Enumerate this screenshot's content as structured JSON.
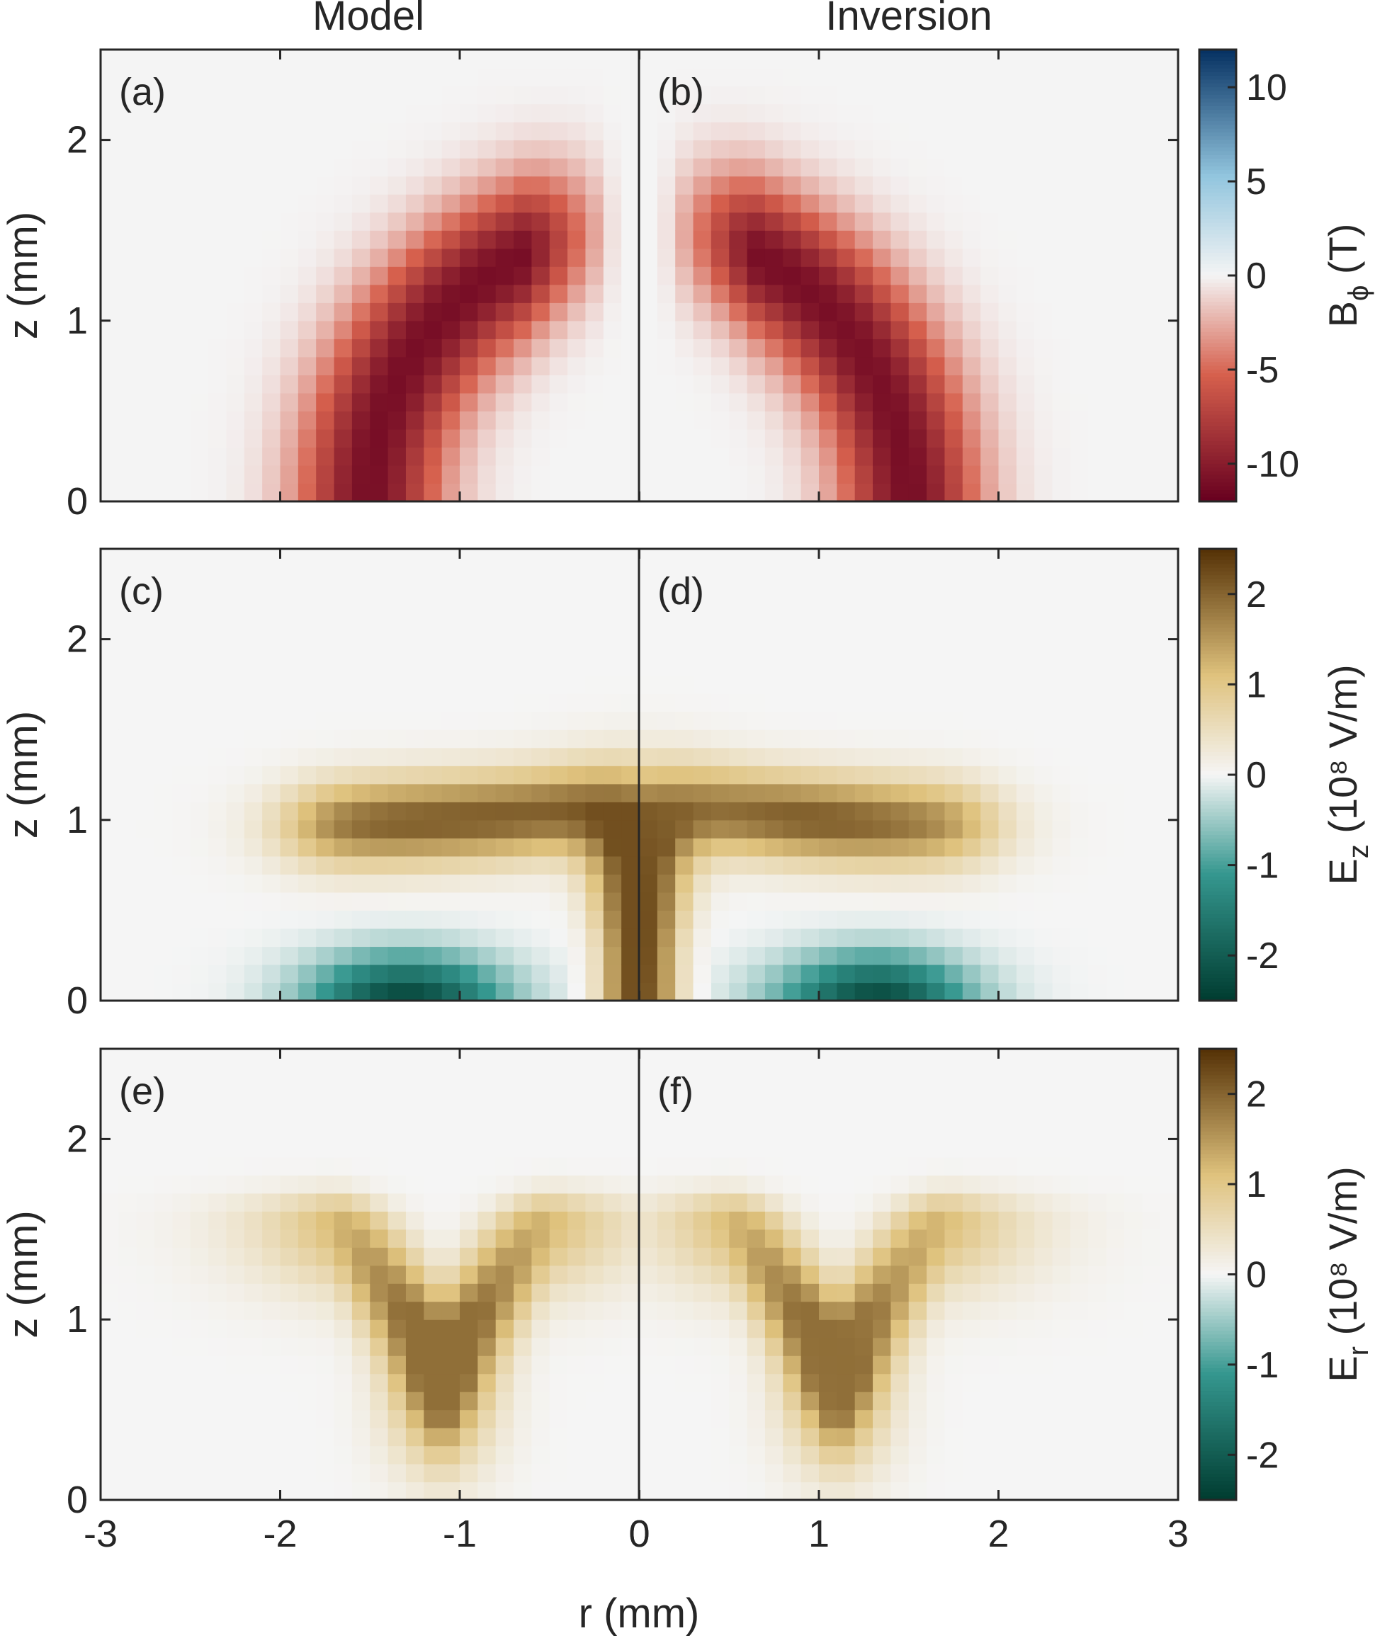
{
  "figure": {
    "col_titles": [
      "Model",
      "Inversion"
    ],
    "xlabel": "r (mm)",
    "ylabel": "z (mm)",
    "x_ticks": [
      "-3",
      "-2",
      "-1",
      "0",
      "0",
      "1",
      "2",
      "3"
    ],
    "y_ticks": [
      "0",
      "1",
      "2"
    ]
  },
  "chart_data": [
    {
      "type": "heatmap",
      "field": "B_phi",
      "panels": [
        {
          "label": "(a)",
          "title": "Model",
          "xlim": [
            -3,
            0
          ]
        },
        {
          "label": "(b)",
          "title": "Inversion",
          "xlim": [
            0,
            3
          ]
        }
      ],
      "shape": "arc",
      "arc": {
        "center_r": 0,
        "center_z": 0,
        "radius": 1.5,
        "width": 0.28
      },
      "ylim": [
        0,
        2.5
      ],
      "colorbar": {
        "label": "B",
        "label_sub": "ϕ",
        "label_rest": " (T)",
        "range": [
          -12,
          12
        ],
        "ticks": [
          10,
          5,
          0,
          -5,
          -10
        ],
        "tick_labels": [
          "10",
          "5",
          "0",
          "-5",
          "-10"
        ],
        "colormap": "red-white-blue",
        "colors": {
          "neg": "#67001f",
          "negmid": "#d6604d",
          "zero": "#f4f4f4",
          "posmid": "#92c5de",
          "pos": "#053061"
        }
      },
      "peak_value": -11
    },
    {
      "type": "heatmap",
      "field": "E_z",
      "panels": [
        {
          "label": "(c)",
          "title": "Model",
          "xlim": [
            -3,
            0
          ]
        },
        {
          "label": "(d)",
          "title": "Inversion",
          "xlim": [
            0,
            3
          ]
        }
      ],
      "shape": "wing",
      "ylim": [
        0,
        2.5
      ],
      "colorbar": {
        "label": "E",
        "label_sub": "z",
        "label_rest": " (10⁸ V/m)",
        "range": [
          -2.5,
          2.5
        ],
        "ticks": [
          2,
          1,
          0,
          -1,
          -2
        ],
        "tick_labels": [
          "2",
          "1",
          "0",
          "-1",
          "-2"
        ],
        "colormap": "brown-white-teal",
        "colors": {
          "neg": "#003c30",
          "negmid": "#35978f",
          "zero": "#f5f5f5",
          "posmid": "#dfc27d",
          "pos": "#543005"
        }
      },
      "peak_value": 2.2,
      "trough_value": -2.3
    },
    {
      "type": "heatmap",
      "field": "E_r",
      "panels": [
        {
          "label": "(e)",
          "title": "Model",
          "xlim": [
            -3,
            0
          ]
        },
        {
          "label": "(f)",
          "title": "Inversion",
          "xlim": [
            0,
            3
          ]
        }
      ],
      "shape": "v",
      "ylim": [
        0,
        2.5
      ],
      "colorbar": {
        "label": "E",
        "label_sub": "r",
        "label_rest": " (10⁸ V/m)",
        "range": [
          -2.5,
          2.5
        ],
        "ticks": [
          2,
          1,
          0,
          -1,
          -2
        ],
        "tick_labels": [
          "2",
          "1",
          "0",
          "-1",
          "-2"
        ],
        "colormap": "brown-white-teal",
        "colors": {
          "neg": "#003c30",
          "negmid": "#35978f",
          "zero": "#f5f5f5",
          "posmid": "#dfc27d",
          "pos": "#543005"
        }
      },
      "peak_value": 1.9
    }
  ]
}
